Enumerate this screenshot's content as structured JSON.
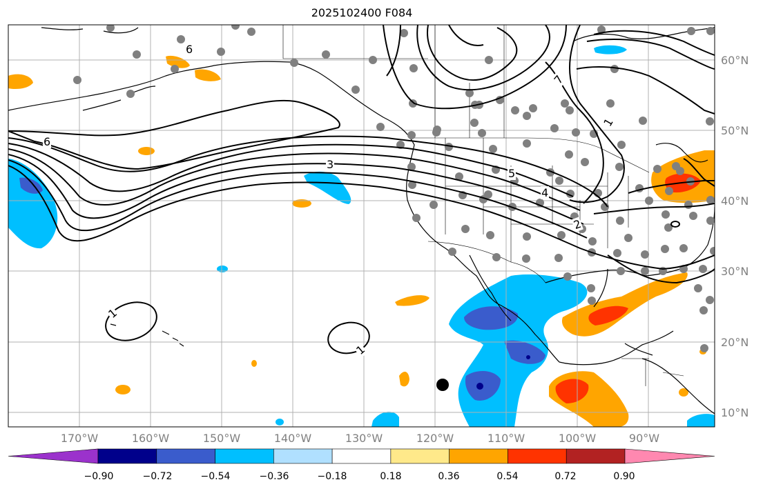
{
  "title": "2025102400 F084",
  "map": {
    "lat_labels": [
      "60°N",
      "50°N",
      "40°N",
      "30°N",
      "20°N",
      "10°N"
    ],
    "lon_labels": [
      "170°W",
      "160°W",
      "150°W",
      "140°W",
      "130°W",
      "120°W",
      "110°W",
      "100°W",
      "90°W"
    ],
    "contour_labels": [
      "6",
      "6",
      "3",
      "5",
      "4",
      "1",
      "1",
      "1",
      "2",
      "7"
    ]
  },
  "colorbar": {
    "ticks": [
      "−0.90",
      "−0.72",
      "−0.54",
      "−0.36",
      "−0.18",
      "0.18",
      "0.36",
      "0.54",
      "0.72",
      "0.90"
    ],
    "colors": [
      "#9b32cc",
      "#00008b",
      "#3a5ccc",
      "#00bfff",
      "#b0e0ff",
      "#ffffff",
      "#ffe98a",
      "#ffa500",
      "#ff3300",
      "#b22222",
      "#ff88b0"
    ]
  }
}
